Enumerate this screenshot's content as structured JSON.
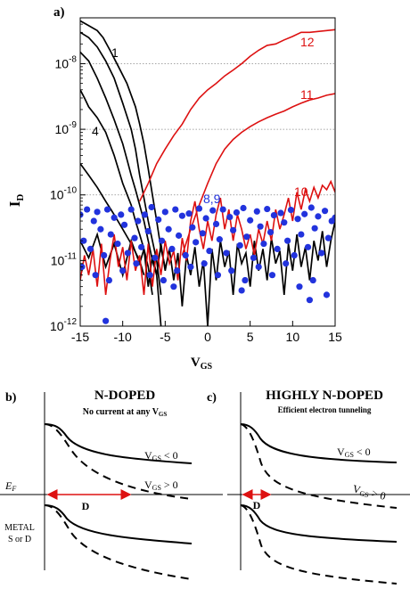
{
  "panel_a": {
    "label": "a)",
    "xlabel_main": "V",
    "xlabel_sub": "GS",
    "ylabel_main": "I",
    "ylabel_sub": "D",
    "curve_labels": [
      {
        "text": "1",
        "color": "#000000"
      },
      {
        "text": "4",
        "color": "#000000"
      },
      {
        "text": "8,9",
        "color": "#2233dd"
      },
      {
        "text": "10",
        "color": "#dd1111"
      },
      {
        "text": "11",
        "color": "#dd1111"
      },
      {
        "text": "12",
        "color": "#dd1111"
      }
    ]
  },
  "chart_data": {
    "type": "line",
    "xlim": [
      -15,
      15
    ],
    "ylim": [
      1e-12,
      5e-08
    ],
    "yscale": "log",
    "x_ticks": [
      "-15",
      "-10",
      "-5",
      "0",
      "5",
      "10",
      "15"
    ],
    "y_ticks": [
      {
        "base": "10",
        "exp": "-12",
        "value": 1e-12
      },
      {
        "base": "10",
        "exp": "-11",
        "value": 1e-11
      },
      {
        "base": "10",
        "exp": "-10",
        "value": 1e-10
      },
      {
        "base": "10",
        "exp": "-9",
        "value": 1e-09
      },
      {
        "base": "10",
        "exp": "-8",
        "value": 1e-08
      }
    ],
    "grid": "dotted horizontal at 1e-10, 1e-9, 1e-8",
    "colors": {
      "black": "#000000",
      "red": "#dd1111",
      "blue": "#2233dd"
    },
    "black_curves": [
      {
        "x": [
          -15,
          -14,
          -13,
          -12.3,
          -11.5,
          -10.5,
          -9.5,
          -8.5,
          -8,
          -7.5,
          -7,
          -6.5,
          -6,
          -5.5,
          -5
        ],
        "y": [
          4.5e-08,
          3.8e-08,
          3.2e-08,
          2.5e-08,
          1.6e-08,
          9e-09,
          5e-09,
          2.2e-09,
          1.2e-09,
          6e-10,
          2.5e-10,
          1e-10,
          4e-11,
          1.5e-11,
          8e-12
        ]
      },
      {
        "x": [
          -15,
          -14,
          -13,
          -12,
          -11,
          -10,
          -9,
          -8.5,
          -8,
          -7.5,
          -7,
          -6.5,
          -6,
          -5.5
        ],
        "y": [
          3e-08,
          2.5e-08,
          1.8e-08,
          1.1e-08,
          6e-09,
          2.5e-09,
          1e-09,
          5e-10,
          2e-10,
          9e-11,
          4e-11,
          2e-11,
          1e-11,
          3e-12
        ]
      },
      {
        "x": [
          -15,
          -14,
          -13,
          -12,
          -11,
          -10,
          -9.5,
          -9,
          -8.5,
          -8,
          -7.5,
          -7,
          -6.5,
          -6,
          -5.5
        ],
        "y": [
          1.5e-08,
          1.1e-08,
          6e-09,
          3e-09,
          1.4e-09,
          6e-10,
          3.5e-10,
          2e-10,
          1.2e-10,
          7e-11,
          4e-11,
          2e-11,
          1e-11,
          6e-12,
          1e-12
        ]
      },
      {
        "x": [
          -15,
          -14.5,
          -14,
          -13,
          -12,
          -11,
          -10,
          -9,
          -8.5,
          -8,
          -7.5,
          -7,
          -6.5
        ],
        "y": [
          4e-09,
          3e-09,
          2.2e-09,
          1.5e-09,
          9e-10,
          4e-10,
          1.5e-10,
          7e-11,
          4e-11,
          2.5e-11,
          1.5e-11,
          8e-12,
          3e-12
        ]
      },
      {
        "x": [
          -15,
          -14,
          -13,
          -12,
          -11,
          -10,
          -9,
          -8,
          -7.5
        ],
        "y": [
          3e-10,
          2e-10,
          1.3e-10,
          8e-11,
          5e-11,
          3e-11,
          1.8e-11,
          1e-11,
          6e-12
        ]
      },
      {
        "x": [
          -15,
          -14,
          -13,
          -12,
          -11,
          -10,
          -9,
          -8,
          -7.5,
          -7,
          -6.5,
          -6,
          -5.5,
          -5,
          -4.5,
          -4,
          -3.5,
          -3,
          -2.5,
          -2,
          -1.5,
          -1,
          -0.5,
          0,
          0.5,
          1,
          1.5,
          2,
          2.5,
          3,
          3.5,
          4,
          4.5,
          5,
          5.5,
          6,
          6.5,
          7,
          7.5,
          8,
          8.5,
          9,
          9.5,
          10,
          10.5,
          11,
          11.5,
          12,
          12.5,
          13,
          13.5,
          14,
          14.5,
          15
        ],
        "y": [
          2e-11,
          1.1e-11,
          2.5e-11,
          8e-12,
          1.8e-11,
          6e-12,
          2e-11,
          9e-12,
          1.5e-11,
          4e-12,
          1.2e-11,
          6e-12,
          1.8e-11,
          7e-12,
          1.5e-11,
          5e-12,
          1.3e-11,
          2e-12,
          1.2e-11,
          6e-12,
          1.6e-11,
          4e-12,
          1e-11,
          1e-12,
          1.5e-11,
          5e-12,
          2e-11,
          8e-12,
          1.4e-11,
          3e-12,
          1.8e-11,
          9e-12,
          1.3e-11,
          4e-12,
          2e-11,
          7e-12,
          1.5e-11,
          5e-12,
          2.2e-11,
          9e-12,
          1.4e-11,
          3e-12,
          1.8e-11,
          7e-12,
          2.5e-11,
          8e-12,
          1.6e-11,
          5e-12,
          2e-11,
          1e-11,
          2.8e-11,
          8e-12,
          2e-11,
          4e-11
        ]
      }
    ],
    "red_curves": [
      {
        "label": "12",
        "x": [
          -8,
          -7,
          -6,
          -5,
          -4,
          -3,
          -2,
          -1,
          0,
          1,
          2,
          3,
          4,
          5,
          6,
          7,
          8,
          9,
          10,
          11,
          12,
          13,
          14,
          15
        ],
        "y": [
          8e-11,
          1.5e-10,
          3e-10,
          5e-10,
          8e-10,
          1.2e-09,
          2e-09,
          3e-09,
          4e-09,
          5e-09,
          6.5e-09,
          8e-09,
          1e-08,
          1.3e-08,
          1.6e-08,
          1.9e-08,
          2e-08,
          2.3e-08,
          2.6e-08,
          3e-08,
          3e-08,
          3.1e-08,
          3.2e-08,
          3.3e-08
        ]
      },
      {
        "label": "11",
        "x": [
          -3,
          -2,
          -1,
          0,
          1,
          2,
          3,
          4,
          5,
          6,
          7,
          8,
          9,
          10,
          11,
          12,
          13,
          14,
          15
        ],
        "y": [
          1.2e-11,
          3e-11,
          7e-11,
          1.5e-10,
          3e-10,
          5e-10,
          7e-10,
          9e-10,
          1.1e-09,
          1.3e-09,
          1.5e-09,
          1.7e-09,
          1.9e-09,
          2.2e-09,
          2.5e-09,
          2.8e-09,
          3e-09,
          3.3e-09,
          3.5e-09
        ]
      },
      {
        "label": "10",
        "x": [
          -15,
          -14.5,
          -14,
          -13.5,
          -13,
          -12.5,
          -12,
          -11.5,
          -11,
          -10.5,
          -10,
          -9.5,
          -9,
          -8.5,
          -8,
          -7.5,
          -7,
          -6.5,
          -6,
          -5.5,
          -5,
          -4.5,
          -4,
          -3.5,
          -3,
          -2.5,
          -2,
          -1.5,
          -1,
          -0.5,
          0,
          0.5,
          1,
          1.5,
          2,
          2.5,
          3,
          3.5,
          4,
          4.5,
          5,
          5.5,
          6,
          6.5,
          7,
          7.5,
          8,
          8.5,
          9,
          9.5,
          10,
          10.5,
          11,
          11.5,
          12,
          12.5,
          13,
          13.5,
          14,
          14.5,
          15
        ],
        "y": [
          5e-12,
          1.2e-11,
          6e-12,
          1.5e-11,
          4e-12,
          1.8e-11,
          3e-12,
          1e-11,
          2.5e-11,
          8e-12,
          1.6e-11,
          5e-12,
          2e-11,
          7e-12,
          1.2e-11,
          3e-12,
          1.8e-11,
          4e-12,
          1.5e-11,
          6e-12,
          2e-11,
          9e-12,
          1.4e-11,
          5e-12,
          2.2e-11,
          1e-11,
          4e-11,
          8e-11,
          3e-11,
          1.5e-11,
          4e-11,
          2e-11,
          5e-11,
          9e-11,
          3e-11,
          6e-11,
          2e-11,
          5e-11,
          3e-11,
          1.5e-11,
          2.5e-11,
          1.2e-11,
          3e-11,
          1.8e-11,
          4e-11,
          2e-11,
          6e-11,
          3e-11,
          5e-11,
          9e-11,
          4e-11,
          1.1e-10,
          6e-11,
          1.2e-10,
          8e-11,
          1.3e-10,
          9e-11,
          1.4e-10,
          1.2e-10,
          1.6e-10,
          1.1e-10
        ]
      }
    ],
    "scatter": {
      "name": "8,9",
      "x": [
        -15,
        -14.6,
        -14.2,
        -13.8,
        -13.4,
        -13,
        -12.6,
        -12.2,
        -11.8,
        -11.4,
        -11,
        -10.6,
        -10.2,
        -9.8,
        -9.4,
        -9,
        -8.6,
        -8.2,
        -7.8,
        -7.4,
        -7,
        -6.6,
        -6.2,
        -5.8,
        -5.4,
        -5,
        -4.6,
        -4.2,
        -3.8,
        -3.4,
        -3,
        -2.6,
        -2.2,
        -1.8,
        -1.4,
        -1,
        -0.6,
        -0.2,
        0.2,
        0.6,
        1,
        1.4,
        1.8,
        2.2,
        2.6,
        3,
        3.4,
        3.8,
        4.2,
        4.6,
        5,
        5.4,
        5.8,
        6.2,
        6.6,
        7,
        7.4,
        7.8,
        8.2,
        8.6,
        9,
        9.4,
        9.8,
        10.2,
        10.6,
        11,
        11.4,
        11.8,
        12.2,
        12.6,
        13,
        13.4,
        13.8,
        14.2,
        14.6,
        15,
        -14.8,
        -13.2,
        -11.6,
        -10,
        -8.4,
        -6.8,
        -5.2,
        -3.6,
        -2,
        -0.4,
        1.2,
        2.8,
        4.4,
        6,
        7.6,
        9.2,
        10.8,
        12.4,
        14,
        -12,
        -4,
        4,
        12
      ],
      "y": [
        5e-11,
        2e-11,
        6e-11,
        1.5e-11,
        4e-11,
        5.5e-11,
        3e-11,
        1.2e-11,
        6e-11,
        2.5e-11,
        4.5e-11,
        1.8e-11,
        5e-11,
        3.5e-11,
        1.3e-11,
        6e-11,
        2.2e-11,
        4e-11,
        1.6e-11,
        5e-11,
        2.8e-11,
        6.5e-11,
        1.1e-11,
        4.2e-11,
        2e-11,
        5.5e-11,
        3e-11,
        1.5e-11,
        6e-11,
        2.4e-11,
        4.8e-11,
        1.2e-11,
        5.2e-11,
        3.2e-11,
        1.9e-11,
        6.2e-11,
        2.6e-11,
        4.4e-11,
        1.4e-11,
        5.8e-11,
        3.6e-11,
        2.1e-11,
        6e-11,
        1.3e-11,
        4.6e-11,
        2.9e-11,
        5.4e-11,
        1.7e-11,
        6.3e-11,
        2.3e-11,
        4.1e-11,
        1.1e-11,
        5.6e-11,
        3.3e-11,
        1.8e-11,
        6.1e-11,
        2.7e-11,
        4.9e-11,
        1.5e-11,
        5.3e-11,
        3.8e-11,
        2e-11,
        5.9e-11,
        1.2e-11,
        4.3e-11,
        2.5e-11,
        5.1e-11,
        1.6e-11,
        6.4e-11,
        3.1e-11,
        4.7e-11,
        1.3e-11,
        5.7e-11,
        2.2e-11,
        4e-11,
        4.5e-11,
        8e-12,
        6e-12,
        5e-12,
        7e-12,
        9e-12,
        6e-12,
        5e-12,
        7e-12,
        8e-12,
        9e-12,
        6e-12,
        7e-12,
        5e-12,
        8e-12,
        6e-12,
        9e-12,
        4e-12,
        5e-12,
        3e-12,
        1.2e-12,
        4e-12,
        3.5e-12,
        2.5e-12
      ]
    }
  },
  "panel_b": {
    "label": "b)",
    "title": "N-DOPED",
    "subtitle_main": "No current at any V",
    "subtitle_sub": "GS",
    "vgs_neg_main": "V",
    "vgs_neg_sub": "GS",
    "vgs_neg_rel": " < 0",
    "vgs_pos_main": "V",
    "vgs_pos_sub": "GS",
    "vgs_pos_rel": " > 0",
    "ef_main": "E",
    "ef_sub": "F",
    "d_label": "D",
    "metal_line1": "METAL",
    "metal_line2": "S or D"
  },
  "panel_c": {
    "label": "c)",
    "title": "HIGHLY N-DOPED",
    "subtitle": "Efficient electron tunneling",
    "vgs_neg_main": "V",
    "vgs_neg_sub": "GS",
    "vgs_neg_rel": " < 0",
    "vgs_pos_main": "V",
    "vgs_pos_sub": "GS",
    "vgs_pos_rel": " > 0",
    "d_label": "D"
  }
}
